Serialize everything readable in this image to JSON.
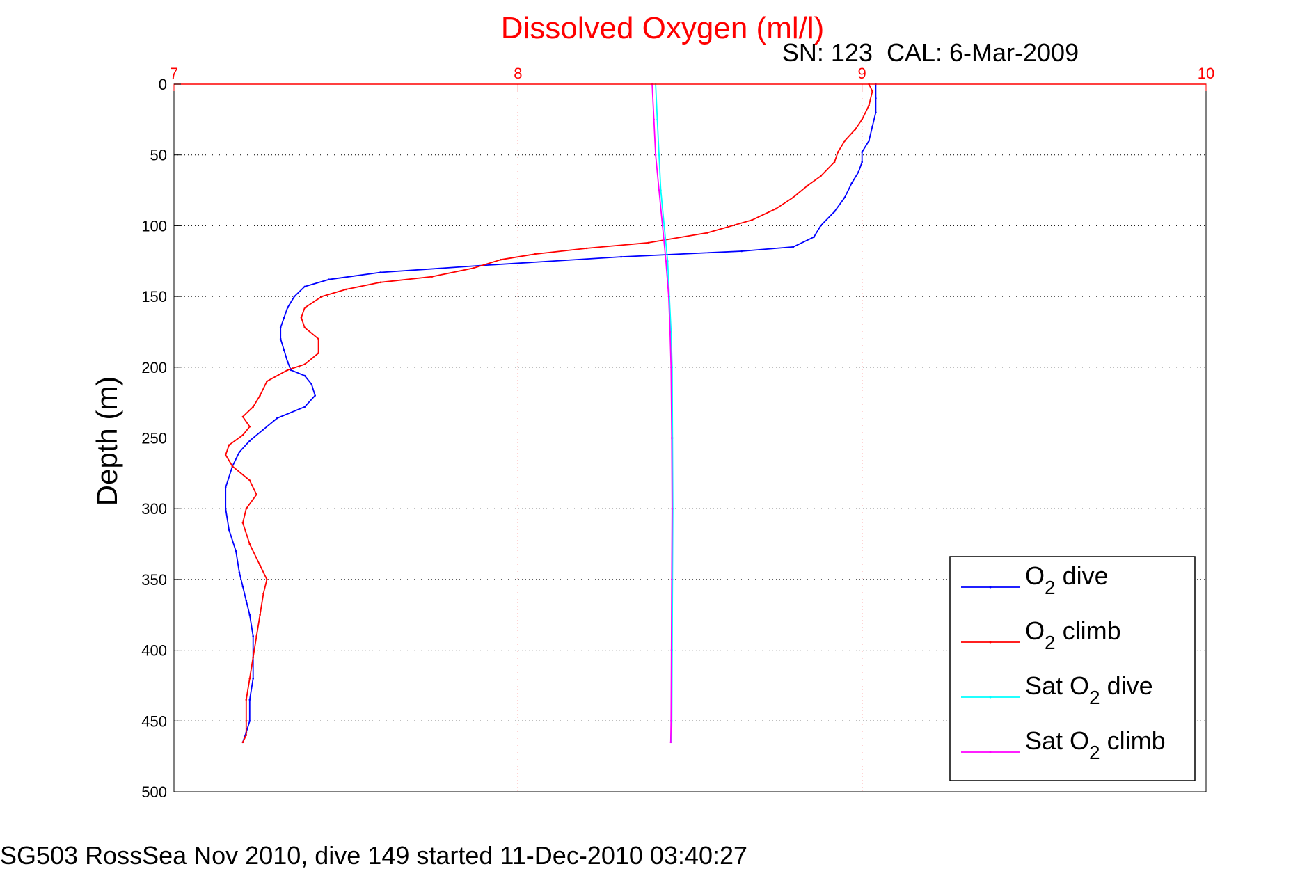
{
  "chart_data": {
    "type": "line",
    "title": "Dissolved Oxygen (ml/l)",
    "subtitle": "SN: 123  CAL: 6-Mar-2009",
    "xlabel": "",
    "ylabel": "Depth (m)",
    "footer": "SG503 RossSea Nov 2010, dive 149 started 11-Dec-2010 03:40:27",
    "xlim": [
      7,
      10
    ],
    "ylim": [
      0,
      500
    ],
    "y_reversed": true,
    "x_axis_position": "top",
    "xticks": [
      "7",
      "8",
      "9",
      "10"
    ],
    "yticks": [
      "0",
      "50",
      "100",
      "150",
      "200",
      "250",
      "300",
      "350",
      "400",
      "450",
      "500"
    ],
    "grid": true,
    "legend_position": "bottom-right",
    "colors": {
      "title": "#ff0000",
      "x_axis": "#ff0000",
      "grid": "#000000",
      "text": "#000000"
    },
    "series": [
      {
        "name": "O2 dive",
        "legend_parts": [
          "O",
          "2",
          " dive"
        ],
        "color": "#0000ff",
        "points": [
          [
            9.04,
            0
          ],
          [
            9.04,
            10
          ],
          [
            9.04,
            20
          ],
          [
            9.03,
            30
          ],
          [
            9.02,
            40
          ],
          [
            9.0,
            48
          ],
          [
            9.0,
            55
          ],
          [
            8.99,
            62
          ],
          [
            8.97,
            70
          ],
          [
            8.95,
            80
          ],
          [
            8.92,
            90
          ],
          [
            8.88,
            100
          ],
          [
            8.86,
            108
          ],
          [
            8.8,
            115
          ],
          [
            8.65,
            118
          ],
          [
            8.3,
            122
          ],
          [
            7.9,
            128
          ],
          [
            7.6,
            133
          ],
          [
            7.45,
            138
          ],
          [
            7.38,
            143
          ],
          [
            7.35,
            150
          ],
          [
            7.33,
            158
          ],
          [
            7.32,
            165
          ],
          [
            7.31,
            172
          ],
          [
            7.31,
            180
          ],
          [
            7.32,
            188
          ],
          [
            7.33,
            196
          ],
          [
            7.34,
            202
          ],
          [
            7.38,
            206
          ],
          [
            7.4,
            212
          ],
          [
            7.41,
            220
          ],
          [
            7.38,
            228
          ],
          [
            7.3,
            236
          ],
          [
            7.26,
            244
          ],
          [
            7.22,
            252
          ],
          [
            7.19,
            260
          ],
          [
            7.17,
            270
          ],
          [
            7.15,
            285
          ],
          [
            7.15,
            300
          ],
          [
            7.16,
            315
          ],
          [
            7.18,
            330
          ],
          [
            7.19,
            345
          ],
          [
            7.2,
            355
          ],
          [
            7.21,
            365
          ],
          [
            7.22,
            375
          ],
          [
            7.23,
            390
          ],
          [
            7.23,
            405
          ],
          [
            7.23,
            420
          ],
          [
            7.22,
            435
          ],
          [
            7.22,
            450
          ],
          [
            7.21,
            458
          ],
          [
            7.2,
            465
          ]
        ]
      },
      {
        "name": "O2 climb",
        "legend_parts": [
          "O",
          "2",
          " climb"
        ],
        "color": "#ff0000",
        "points": [
          [
            9.02,
            0
          ],
          [
            9.03,
            5
          ],
          [
            9.02,
            15
          ],
          [
            9.0,
            25
          ],
          [
            8.98,
            32
          ],
          [
            8.95,
            40
          ],
          [
            8.93,
            48
          ],
          [
            8.92,
            55
          ],
          [
            8.88,
            65
          ],
          [
            8.84,
            72
          ],
          [
            8.8,
            80
          ],
          [
            8.75,
            88
          ],
          [
            8.68,
            96
          ],
          [
            8.55,
            105
          ],
          [
            8.38,
            112
          ],
          [
            8.2,
            116
          ],
          [
            8.05,
            120
          ],
          [
            7.95,
            124
          ],
          [
            7.87,
            130
          ],
          [
            7.75,
            136
          ],
          [
            7.6,
            140
          ],
          [
            7.5,
            145
          ],
          [
            7.43,
            150
          ],
          [
            7.38,
            158
          ],
          [
            7.37,
            165
          ],
          [
            7.38,
            172
          ],
          [
            7.42,
            180
          ],
          [
            7.42,
            190
          ],
          [
            7.38,
            198
          ],
          [
            7.33,
            202
          ],
          [
            7.27,
            210
          ],
          [
            7.25,
            220
          ],
          [
            7.23,
            228
          ],
          [
            7.2,
            235
          ],
          [
            7.22,
            242
          ],
          [
            7.2,
            248
          ],
          [
            7.16,
            255
          ],
          [
            7.15,
            262
          ],
          [
            7.17,
            270
          ],
          [
            7.22,
            280
          ],
          [
            7.24,
            290
          ],
          [
            7.21,
            300
          ],
          [
            7.2,
            310
          ],
          [
            7.22,
            325
          ],
          [
            7.25,
            340
          ],
          [
            7.27,
            350
          ],
          [
            7.26,
            360
          ],
          [
            7.25,
            375
          ],
          [
            7.24,
            390
          ],
          [
            7.23,
            405
          ],
          [
            7.22,
            420
          ],
          [
            7.21,
            435
          ],
          [
            7.21,
            450
          ],
          [
            7.21,
            460
          ],
          [
            7.2,
            465
          ]
        ]
      },
      {
        "name": "Sat O2 dive",
        "legend_parts": [
          "Sat O",
          "2",
          " dive"
        ],
        "color": "#00ffff",
        "points": [
          [
            8.4,
            0
          ],
          [
            8.405,
            25
          ],
          [
            8.41,
            50
          ],
          [
            8.415,
            75
          ],
          [
            8.425,
            100
          ],
          [
            8.435,
            125
          ],
          [
            8.44,
            150
          ],
          [
            8.445,
            175
          ],
          [
            8.448,
            200
          ],
          [
            8.449,
            250
          ],
          [
            8.45,
            300
          ],
          [
            8.449,
            350
          ],
          [
            8.448,
            400
          ],
          [
            8.447,
            450
          ],
          [
            8.446,
            465
          ]
        ]
      },
      {
        "name": "Sat O2 climb",
        "legend_parts": [
          "Sat O",
          "2",
          " climb"
        ],
        "color": "#ff00ff",
        "points": [
          [
            8.39,
            0
          ],
          [
            8.395,
            25
          ],
          [
            8.4,
            50
          ],
          [
            8.41,
            75
          ],
          [
            8.42,
            100
          ],
          [
            8.43,
            125
          ],
          [
            8.438,
            150
          ],
          [
            8.442,
            175
          ],
          [
            8.445,
            200
          ],
          [
            8.447,
            250
          ],
          [
            8.448,
            300
          ],
          [
            8.447,
            350
          ],
          [
            8.446,
            400
          ],
          [
            8.445,
            450
          ],
          [
            8.444,
            465
          ]
        ]
      }
    ]
  }
}
